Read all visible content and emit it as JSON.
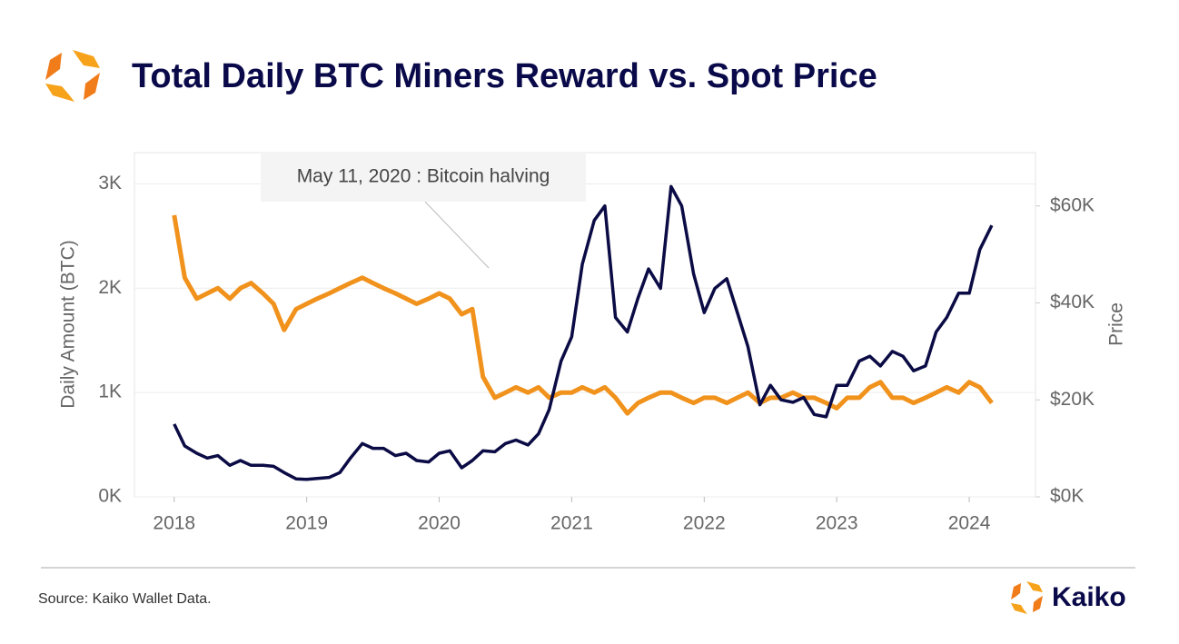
{
  "chart_data": {
    "type": "line",
    "title": "Total Daily BTC Miners Reward vs. Spot Price",
    "annotation": "May 11, 2020 : Bitcoin halving",
    "ylabel": "Daily Amount (BTC)",
    "y2label": "Price",
    "source": "Source: Kaiko Wallet Data.",
    "brand": "Kaiko",
    "x": [
      2018.0,
      2018.08,
      2018.17,
      2018.25,
      2018.33,
      2018.42,
      2018.5,
      2018.58,
      2018.67,
      2018.75,
      2018.83,
      2018.92,
      2019.0,
      2019.08,
      2019.17,
      2019.25,
      2019.33,
      2019.42,
      2019.5,
      2019.58,
      2019.67,
      2019.75,
      2019.83,
      2019.92,
      2020.0,
      2020.08,
      2020.17,
      2020.25,
      2020.33,
      2020.42,
      2020.5,
      2020.58,
      2020.67,
      2020.75,
      2020.83,
      2020.92,
      2021.0,
      2021.08,
      2021.17,
      2021.25,
      2021.33,
      2021.42,
      2021.5,
      2021.58,
      2021.67,
      2021.75,
      2021.83,
      2021.92,
      2022.0,
      2022.08,
      2022.17,
      2022.25,
      2022.33,
      2022.42,
      2022.5,
      2022.58,
      2022.67,
      2022.75,
      2022.83,
      2022.92,
      2023.0,
      2023.08,
      2023.17,
      2023.25,
      2023.33,
      2023.42,
      2023.5,
      2023.58,
      2023.67,
      2023.75,
      2023.83,
      2023.92,
      2024.0,
      2024.08,
      2024.17
    ],
    "series": [
      {
        "name": "Daily Amount (BTC)",
        "color": "#f0921c",
        "axis": "y",
        "values": [
          2700,
          2100,
          1900,
          1950,
          2000,
          1900,
          2000,
          2050,
          1950,
          1850,
          1600,
          1800,
          1850,
          1900,
          1950,
          2000,
          2050,
          2100,
          2050,
          2000,
          1950,
          1900,
          1850,
          1900,
          1950,
          1900,
          1750,
          1800,
          1150,
          950,
          1000,
          1050,
          1000,
          1050,
          950,
          1000,
          1000,
          1050,
          1000,
          1050,
          950,
          800,
          900,
          950,
          1000,
          1000,
          950,
          900,
          950,
          950,
          900,
          950,
          1000,
          900,
          950,
          950,
          1000,
          950,
          950,
          900,
          850,
          950,
          950,
          1050,
          1100,
          950,
          950,
          900,
          950,
          1000,
          1050,
          1000,
          1100,
          1050,
          900
        ]
      },
      {
        "name": "Price",
        "color": "#0b0b45",
        "axis": "y2",
        "values": [
          15000,
          10500,
          9000,
          8000,
          8500,
          6500,
          7500,
          6500,
          6500,
          6300,
          5000,
          3700,
          3600,
          3800,
          4000,
          5000,
          8000,
          11000,
          10000,
          10000,
          8500,
          9000,
          7500,
          7200,
          9000,
          9500,
          6000,
          7500,
          9500,
          9300,
          11000,
          11700,
          10700,
          13000,
          18000,
          28000,
          33000,
          48000,
          57000,
          60000,
          37000,
          34000,
          41000,
          47000,
          43000,
          64000,
          60000,
          46000,
          38000,
          43000,
          45000,
          38000,
          31000,
          19000,
          23000,
          20000,
          19500,
          20500,
          17000,
          16500,
          23000,
          23000,
          28000,
          29000,
          27000,
          30000,
          29000,
          26000,
          27000,
          34000,
          37000,
          42000,
          42000,
          51000,
          56000
        ]
      }
    ],
    "xlim": [
      2017.7,
      2024.5
    ],
    "xticks": [
      2018,
      2019,
      2020,
      2021,
      2022,
      2023,
      2024
    ],
    "ylim": [
      0,
      3300
    ],
    "yticks": [
      {
        "value": 0,
        "label": "0K"
      },
      {
        "value": 1000,
        "label": "1K"
      },
      {
        "value": 2000,
        "label": "2K"
      },
      {
        "value": 3000,
        "label": "3K"
      }
    ],
    "y2lim": [
      0,
      71000
    ],
    "y2ticks": [
      {
        "value": 0,
        "label": "$0K"
      },
      {
        "value": 20000,
        "label": "$20K"
      },
      {
        "value": 40000,
        "label": "$40K"
      },
      {
        "value": 60000,
        "label": "$60K"
      }
    ],
    "grid": true
  }
}
